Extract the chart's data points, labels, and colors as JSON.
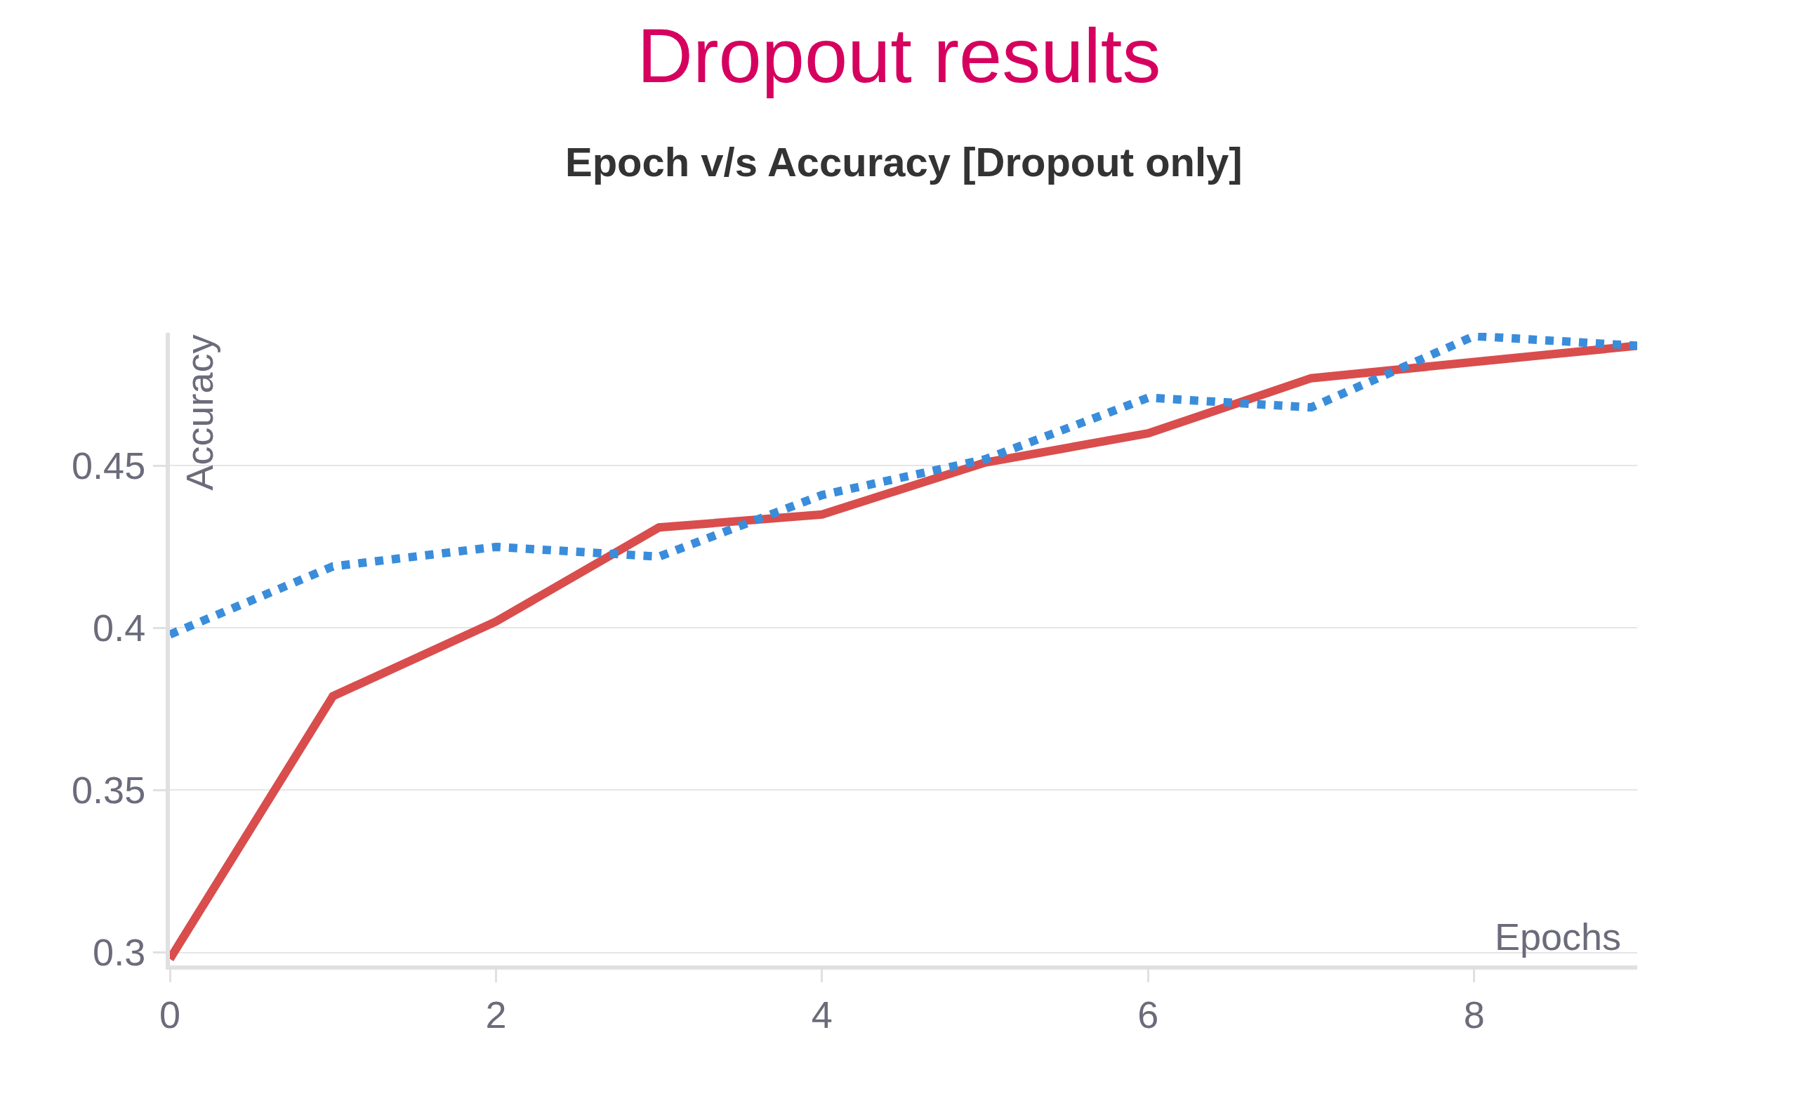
{
  "chart_data": {
    "type": "line",
    "title": "Dropout results",
    "subtitle": "Epoch v/s Accuracy [Dropout only]",
    "xlabel": "Epochs",
    "ylabel": "Accuracy",
    "x": [
      0,
      1,
      2,
      3,
      4,
      5,
      6,
      7,
      8,
      9
    ],
    "series": [
      {
        "color": "#d94d4d",
        "line_style": "solid",
        "values": [
          0.298,
          0.379,
          0.402,
          0.431,
          0.435,
          0.451,
          0.46,
          0.477,
          0.482,
          0.487
        ]
      },
      {
        "color": "#3a8ddb",
        "line_style": "dotted",
        "values": [
          0.398,
          0.419,
          0.425,
          0.422,
          0.441,
          0.452,
          0.471,
          0.468,
          0.49,
          0.487
        ]
      }
    ],
    "xlim": [
      0,
      9
    ],
    "ylim": [
      0.296,
      0.491
    ],
    "xticks": [
      0,
      2,
      4,
      6,
      8
    ],
    "yticks": [
      0.3,
      0.35,
      0.4,
      0.45
    ],
    "grid": "y",
    "marker": "none"
  }
}
